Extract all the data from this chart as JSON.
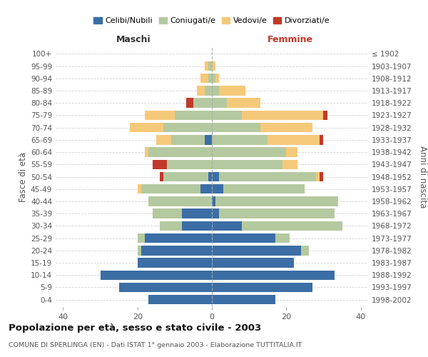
{
  "age_groups": [
    "0-4",
    "5-9",
    "10-14",
    "15-19",
    "20-24",
    "25-29",
    "30-34",
    "35-39",
    "40-44",
    "45-49",
    "50-54",
    "55-59",
    "60-64",
    "65-69",
    "70-74",
    "75-79",
    "80-84",
    "85-89",
    "90-94",
    "95-99",
    "100+"
  ],
  "birth_years": [
    "1998-2002",
    "1993-1997",
    "1988-1992",
    "1983-1987",
    "1978-1982",
    "1973-1977",
    "1968-1972",
    "1963-1967",
    "1958-1962",
    "1953-1957",
    "1948-1952",
    "1943-1947",
    "1938-1942",
    "1933-1937",
    "1928-1932",
    "1923-1927",
    "1918-1922",
    "1913-1917",
    "1908-1912",
    "1903-1907",
    "≤ 1902"
  ],
  "maschi": {
    "celibi": [
      17,
      25,
      30,
      20,
      19,
      18,
      8,
      8,
      0,
      3,
      1,
      0,
      0,
      2,
      0,
      0,
      0,
      0,
      0,
      0,
      0
    ],
    "coniugati": [
      0,
      0,
      0,
      0,
      1,
      2,
      6,
      8,
      17,
      16,
      12,
      12,
      17,
      9,
      13,
      10,
      5,
      2,
      1,
      1,
      0
    ],
    "vedovi": [
      0,
      0,
      0,
      0,
      0,
      0,
      0,
      0,
      0,
      1,
      0,
      0,
      1,
      4,
      9,
      8,
      0,
      2,
      2,
      1,
      0
    ],
    "divorziati": [
      0,
      0,
      0,
      0,
      0,
      0,
      0,
      0,
      0,
      0,
      1,
      4,
      0,
      0,
      0,
      0,
      2,
      0,
      0,
      0,
      0
    ]
  },
  "femmine": {
    "nubili": [
      17,
      27,
      33,
      22,
      24,
      17,
      8,
      2,
      1,
      3,
      2,
      0,
      0,
      0,
      0,
      0,
      0,
      0,
      0,
      0,
      0
    ],
    "coniugate": [
      0,
      0,
      0,
      0,
      2,
      4,
      27,
      31,
      33,
      22,
      26,
      19,
      20,
      15,
      13,
      8,
      4,
      2,
      1,
      0,
      0
    ],
    "vedove": [
      0,
      0,
      0,
      0,
      0,
      0,
      0,
      0,
      0,
      0,
      1,
      4,
      3,
      14,
      14,
      22,
      9,
      7,
      1,
      1,
      0
    ],
    "divorziate": [
      0,
      0,
      0,
      0,
      0,
      0,
      0,
      0,
      0,
      0,
      1,
      0,
      0,
      1,
      0,
      1,
      0,
      0,
      0,
      0,
      0
    ]
  },
  "colors": {
    "celibi": "#3b6ea5",
    "coniugati": "#b5c9a0",
    "vedovi": "#f5c97a",
    "divorziati": "#c0392b"
  },
  "xlim": 42,
  "title": "Popolazione per età, sesso e stato civile - 2003",
  "subtitle": "COMUNE DI SPERLINGA (EN) - Dati ISTAT 1° gennaio 2003 - Elaborazione TUTTITALIA.IT",
  "ylabel_left": "Fasce di età",
  "ylabel_right": "Anni di nascita",
  "xlabel_maschi": "Maschi",
  "xlabel_femmine": "Femmine",
  "legend_labels": [
    "Celibi/Nubili",
    "Coniugati/e",
    "Vedovi/e",
    "Divorziati/e"
  ],
  "bg_color": "#ffffff",
  "grid_color": "#cccccc"
}
